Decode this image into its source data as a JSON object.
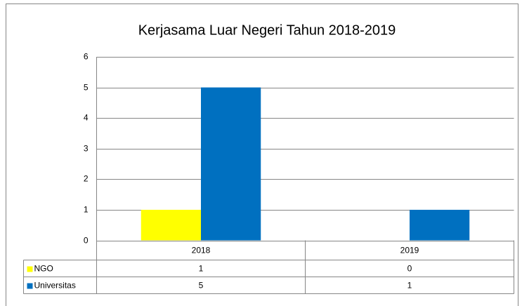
{
  "chart_data": {
    "type": "bar",
    "title": "Kerjasama Luar Negeri Tahun 2018-2019",
    "categories": [
      "2018",
      "2019"
    ],
    "series": [
      {
        "name": "NGO",
        "color": "#ffff00",
        "values": [
          1,
          0
        ]
      },
      {
        "name": "Universitas",
        "color": "#0070c0",
        "values": [
          5,
          1
        ]
      }
    ],
    "ylim": [
      0,
      6
    ],
    "yticks": [
      0,
      1,
      2,
      3,
      4,
      5,
      6
    ],
    "grid": true,
    "data_table": true
  }
}
